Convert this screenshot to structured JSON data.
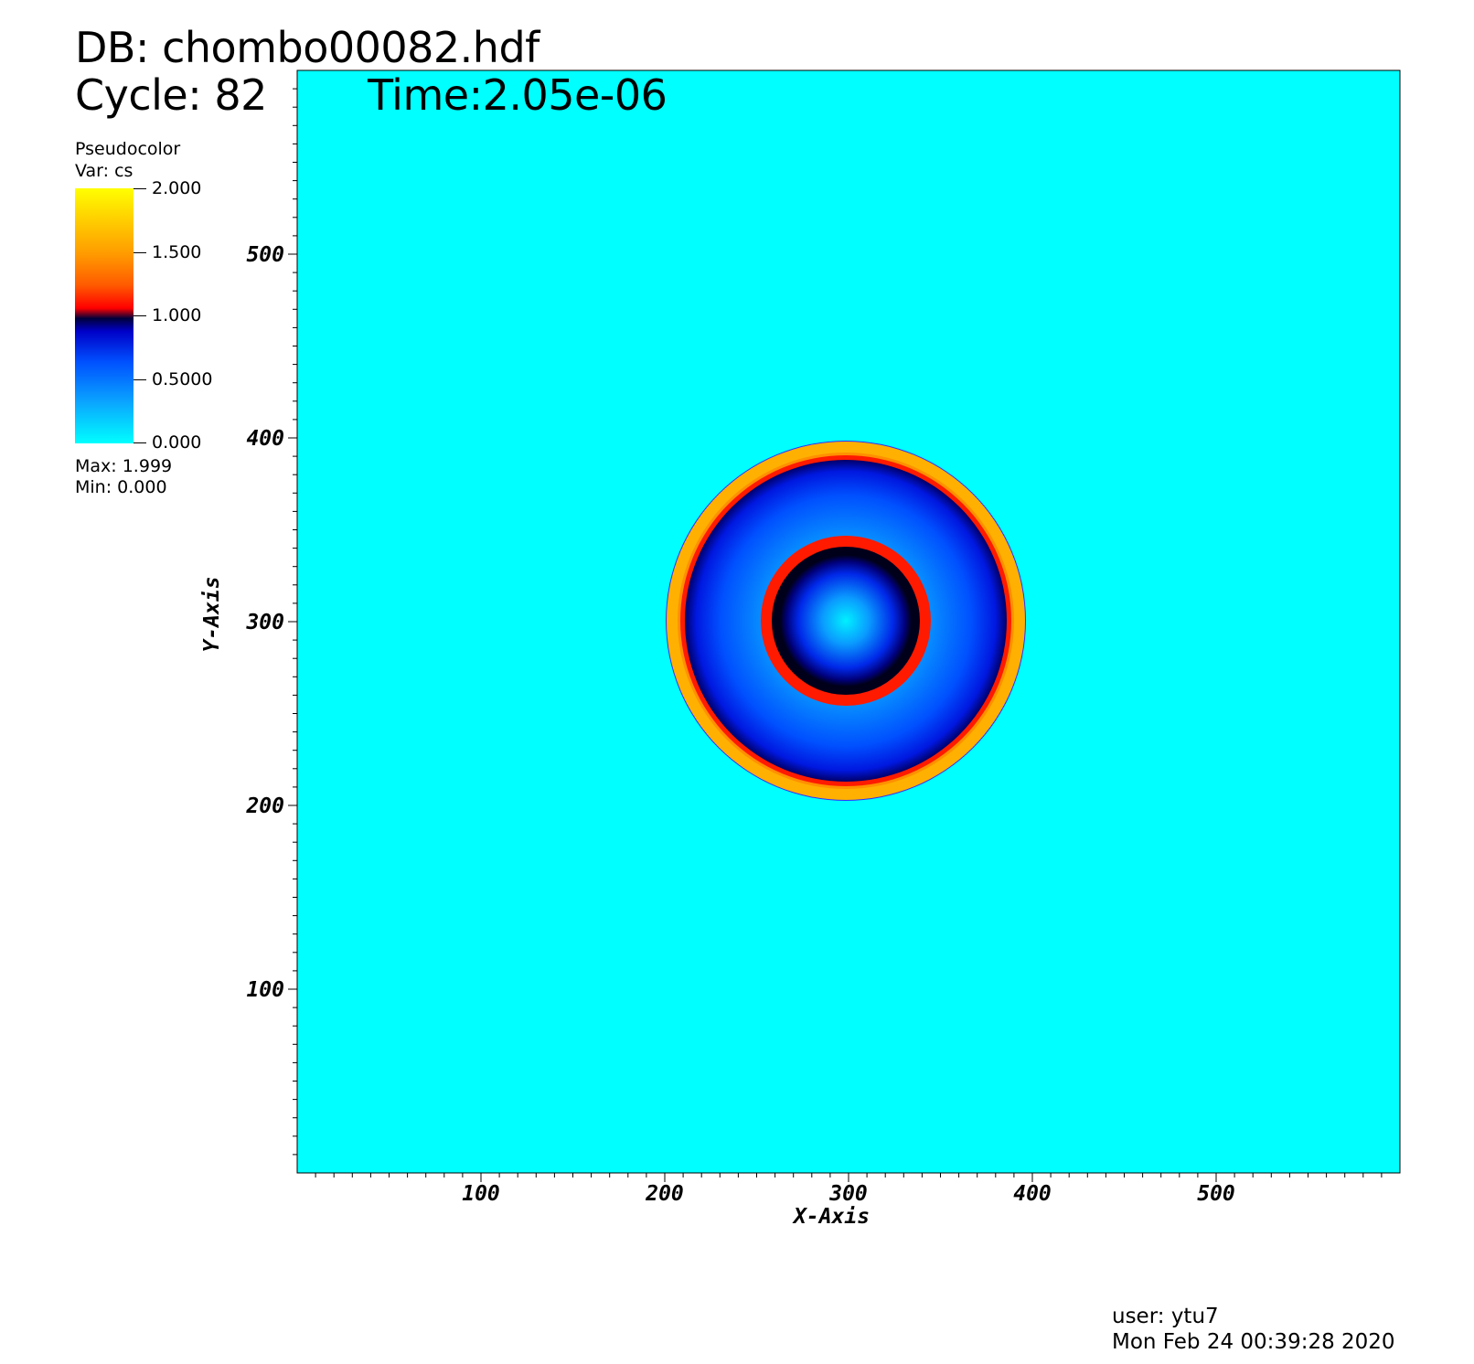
{
  "header": {
    "db": "DB: chombo00082.hdf",
    "cycle": "Cycle: 82",
    "time": "Time:2.05e-06"
  },
  "legend": {
    "title": "Pseudocolor",
    "var": "Var: cs",
    "ticks": [
      "2.000",
      "1.500",
      "1.000",
      "0.5000",
      "0.000"
    ],
    "max": "Max:  1.999",
    "min": "Min:  0.000"
  },
  "footer": {
    "user": "user: ytu7",
    "date": "Mon Feb 24 00:39:28 2020"
  },
  "colors": {
    "background_field": "#00ffff",
    "outer_shell": "#ffb000",
    "shell_edge": "#ff1a00",
    "inner_ring": "#ff1a00",
    "interior_blue": "#0050ff"
  },
  "chart_data": {
    "type": "heatmap",
    "title": "",
    "xlabel": "X-Axis",
    "ylabel": "Y-Axis",
    "xlim": [
      0,
      600
    ],
    "ylim": [
      0,
      600
    ],
    "xticks": [
      100,
      200,
      300,
      400,
      500
    ],
    "yticks": [
      100,
      200,
      300,
      400,
      500
    ],
    "xtick_labels": [
      "100",
      "200",
      "300",
      "400",
      "500"
    ],
    "ytick_labels": [
      "100",
      "200",
      "300",
      "400",
      "500"
    ],
    "variable": "cs",
    "value_range": [
      0.0,
      1.999
    ],
    "colorbar_range": [
      0.0,
      2.0
    ],
    "ambient_value": 0.0,
    "features": [
      {
        "shape": "ring",
        "center": [
          300,
          300
        ],
        "inner_radius": 88,
        "outer_radius": 98,
        "value": 1.7
      },
      {
        "shape": "disk-gradient",
        "center": [
          300,
          300
        ],
        "radius": 88,
        "center_value": 0.3,
        "edge_value": 0.85
      },
      {
        "shape": "ring",
        "center": [
          300,
          300
        ],
        "inner_radius": 36,
        "outer_radius": 46,
        "value": 1.25
      },
      {
        "shape": "disk-gradient",
        "center": [
          300,
          300
        ],
        "radius": 36,
        "center_value": 0.2,
        "edge_value": 0.95
      }
    ]
  }
}
